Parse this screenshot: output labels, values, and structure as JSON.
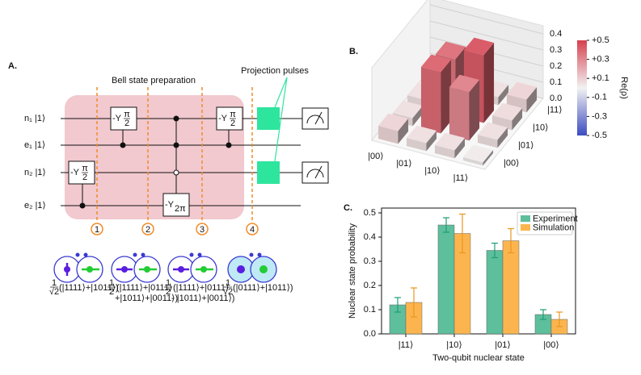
{
  "panel_a": {
    "label": "A.",
    "section_title": "Bell state preparation",
    "projection_label": "Projection pulses",
    "qubits": [
      "n₁ |1⟩",
      "e₁ |1⟩",
      "n₂ |1⟩",
      "e₂ |1⟩"
    ],
    "gates": [
      {
        "base": "-Y",
        "num": "π",
        "den": "2"
      },
      {
        "base": "-Y",
        "num": "π",
        "den": "2"
      },
      {
        "base": "-Y",
        "sub": "2π"
      },
      {
        "base": "-Y",
        "num": "π",
        "den": "2"
      }
    ],
    "steps": [
      1,
      2,
      3,
      4
    ],
    "states": [
      {
        "num": "1",
        "den": "√2",
        "lines": [
          "(|1111⟩+|1011⟩)"
        ]
      },
      {
        "num": "1",
        "den": "2",
        "lines": [
          "(|1111⟩+|0111⟩",
          "+|1011⟩+|0011⟩)"
        ]
      },
      {
        "num": "1",
        "den": "2",
        "lines": [
          "(|1111⟩+|0111⟩",
          "- |1011⟩+|0011⟩)"
        ]
      },
      {
        "num": "1",
        "den": "√2",
        "lines": [
          "(|0111⟩+|1011⟩)"
        ]
      }
    ]
  },
  "chart_data": [
    {
      "type": "bar3d",
      "label": "B.",
      "row_labels": [
        "|00⟩",
        "|01⟩",
        "|10⟩",
        "|11⟩"
      ],
      "col_labels": [
        "|00⟩",
        "|01⟩",
        "|10⟩",
        "|11⟩"
      ],
      "values": [
        [
          0.08,
          0.05,
          0.05,
          0.04
        ],
        [
          0.05,
          0.38,
          0.35,
          0.05
        ],
        [
          0.05,
          0.3,
          0.42,
          0.05
        ],
        [
          0.02,
          0.05,
          0.06,
          0.08
        ]
      ],
      "zlim": [
        0,
        0.45
      ],
      "zticks": [
        {
          "value": 0,
          "label": "0.0"
        },
        0.1,
        0.2,
        0.3,
        0.4
      ],
      "colorbar": {
        "label": "Re(ρ)",
        "lim": [
          -0.5,
          0.5
        ],
        "ticks": [
          {
            "value": 0.5,
            "label": "+0.5"
          },
          {
            "value": 0.3,
            "label": "+0.3"
          },
          {
            "value": 0.1,
            "label": "+0.1"
          },
          -0.1,
          -0.3,
          -0.5
        ]
      }
    },
    {
      "type": "bar",
      "label": "C.",
      "xlabel": "Two-qubit nuclear state",
      "ylabel": "Nuclear state probability",
      "categories": [
        "|11⟩",
        "|10⟩",
        "|01⟩",
        "|00⟩"
      ],
      "series": [
        {
          "name": "Experiment",
          "color": "#5dbf9c",
          "values": [
            0.12,
            0.45,
            0.345,
            0.08
          ],
          "errors": [
            0.03,
            0.03,
            0.03,
            0.02
          ]
        },
        {
          "name": "Simulation",
          "color": "#fcb54e",
          "values": [
            0.13,
            0.415,
            0.385,
            0.06
          ],
          "errors": [
            0.06,
            0.08,
            0.05,
            0.03
          ]
        }
      ],
      "ylim": [
        0,
        0.52
      ],
      "yticks": [
        {
          "value": 0,
          "label": "0.0"
        },
        0.1,
        0.2,
        0.3,
        0.4,
        0.5
      ],
      "legend": "upper right"
    }
  ]
}
